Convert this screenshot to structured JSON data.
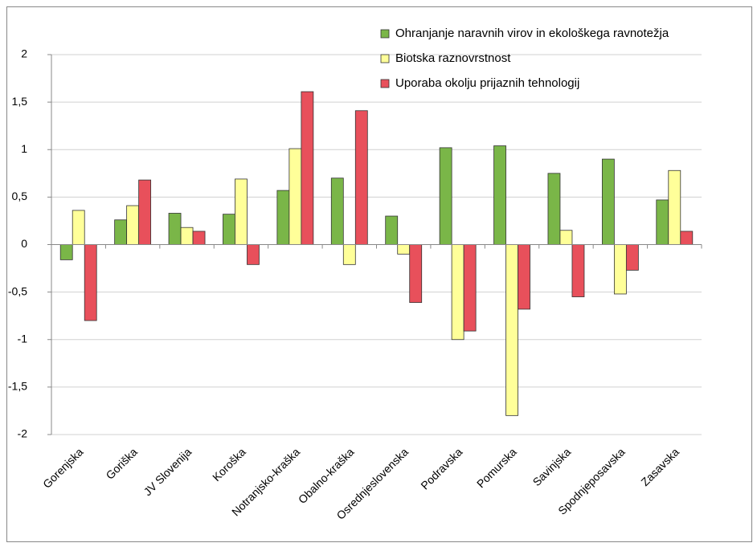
{
  "chart_data": {
    "type": "bar",
    "categories": [
      "Gorenjska",
      "Goriška",
      "JV Slovenija",
      "Koroška",
      "Notranjsko-kraška",
      "Obalno-kraška",
      "Osrednjeslovenska",
      "Podravska",
      "Pomurska",
      "Savinjska",
      "Spodnjeposavska",
      "Zasavska"
    ],
    "series": [
      {
        "name": "Ohranjanje naravnih virov in ekološkega ravnotežja",
        "color": "#7ab648",
        "values": [
          -0.16,
          0.26,
          0.33,
          0.32,
          0.57,
          0.7,
          0.3,
          1.02,
          1.04,
          0.75,
          0.9,
          0.47
        ]
      },
      {
        "name": "Biotska raznovrstnost",
        "color": "#ffff99",
        "values": [
          0.36,
          0.41,
          0.18,
          0.69,
          1.01,
          -0.21,
          -0.1,
          -1.0,
          -1.8,
          0.15,
          -0.52,
          0.78
        ]
      },
      {
        "name": "Uporaba okolju prijaznih tehnologij",
        "color": "#e8505b",
        "values": [
          -0.8,
          0.68,
          0.14,
          -0.21,
          1.61,
          1.41,
          -0.61,
          -0.91,
          -0.68,
          -0.55,
          -0.27,
          0.14
        ]
      }
    ],
    "ylim": [
      -2,
      2
    ],
    "yticks": [
      -2,
      {
        "value": -1.5,
        "label": "-1,5"
      },
      -1,
      {
        "value": -0.5,
        "label": "-0,5"
      },
      0,
      {
        "value": 0.5,
        "label": "0,5"
      },
      1,
      {
        "value": 1.5,
        "label": "1,5"
      },
      2
    ],
    "grid": true,
    "legend": "top-right"
  }
}
